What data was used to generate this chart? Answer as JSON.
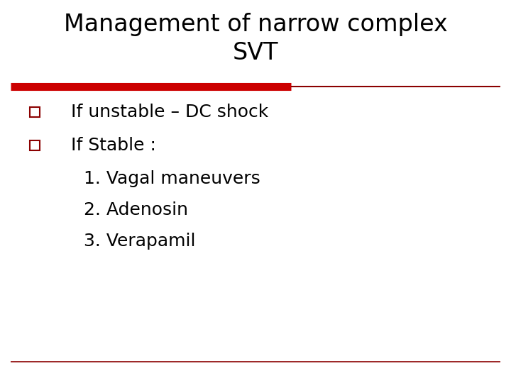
{
  "title_line1": "Management of narrow complex",
  "title_line2": "SVT",
  "background_color": "#ffffff",
  "title_color": "#000000",
  "title_fontsize": 24,
  "text_color": "#000000",
  "text_fontsize": 18,
  "subtext_fontsize": 18,
  "top_bar_thick_color": "#CC0000",
  "top_bar_thin_color": "#8B0000",
  "checkbox_color": "#8B0000",
  "bottom_line_color": "#8B0000",
  "bullet_items": [
    "If unstable – DC shock",
    "If Stable :"
  ],
  "numbered_items": [
    "1. Vagal maneuvers",
    "2. Adenosin",
    "3. Verapamil"
  ],
  "fig_width": 7.2,
  "fig_height": 5.4,
  "dpi": 100
}
